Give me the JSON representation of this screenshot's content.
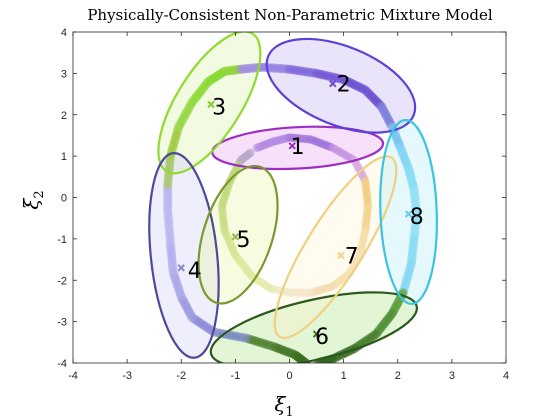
{
  "chart_data": {
    "type": "scatter",
    "title": "Physically-Consistent Non-Parametric Mixture Model",
    "xlabel": "ξ",
    "xlabel_sub": "1",
    "ylabel": "ξ",
    "ylabel_sub": "2",
    "xlim": [
      -4,
      4
    ],
    "ylim": [
      -4,
      4
    ],
    "xticks": [
      -4,
      -3,
      -2,
      -1,
      0,
      1,
      2,
      3,
      4
    ],
    "yticks": [
      -4,
      -3,
      -2,
      -1,
      0,
      1,
      2,
      3,
      4
    ],
    "grid": false,
    "box": true,
    "trajectory": {
      "points": [
        [
          0.3,
          -4.0
        ],
        [
          0.1,
          -3.8
        ],
        [
          -0.3,
          -3.6
        ],
        [
          -0.8,
          -3.4
        ],
        [
          -1.4,
          -3.25
        ],
        [
          -1.8,
          -2.9
        ],
        [
          -2.0,
          -2.4
        ],
        [
          -2.15,
          -1.8
        ],
        [
          -2.2,
          -1.1
        ],
        [
          -2.25,
          -0.3
        ],
        [
          -2.25,
          0.3
        ],
        [
          -2.2,
          1.0
        ],
        [
          -2.05,
          1.7
        ],
        [
          -1.8,
          2.3
        ],
        [
          -1.5,
          2.8
        ],
        [
          -1.2,
          3.05
        ],
        [
          -0.9,
          3.1
        ],
        [
          -0.5,
          3.15
        ],
        [
          0.0,
          3.1
        ],
        [
          0.5,
          3.0
        ],
        [
          1.0,
          2.85
        ],
        [
          1.4,
          2.6
        ],
        [
          1.7,
          2.2
        ],
        [
          1.9,
          1.7
        ],
        [
          2.05,
          1.2
        ],
        [
          2.2,
          0.7
        ],
        [
          2.3,
          0.2
        ],
        [
          2.35,
          -0.4
        ],
        [
          2.3,
          -1.0
        ],
        [
          2.25,
          -1.6
        ],
        [
          2.1,
          -2.3
        ],
        [
          1.9,
          -2.8
        ],
        [
          1.6,
          -3.3
        ],
        [
          1.2,
          -3.65
        ],
        [
          0.8,
          -3.9
        ],
        [
          0.5,
          -4.0
        ]
      ],
      "colors": [
        "#3a6b1f",
        "#3f7322",
        "#4a7e2a",
        "#6f7fc0",
        "#8a86d6",
        "#9d99e2",
        "#a8a4e8",
        "#b0aced",
        "#b5b2ef",
        "#b8b5f0",
        "#a6c46a",
        "#9dc83a",
        "#8fd63a",
        "#88d830",
        "#86d82e",
        "#8fd63a",
        "#a08ae0",
        "#8f7de0",
        "#7b63db",
        "#6f4fd6",
        "#6a4cd0",
        "#6a4cd0",
        "#7a7ed8",
        "#78c5ef",
        "#7fd6f2",
        "#86dcf3",
        "#8fe0f5",
        "#8fe0f5",
        "#86dcf3",
        "#7fd6f2",
        "#5a9c3a",
        "#4a8a2e",
        "#3f7a26",
        "#356b20",
        "#2f621c",
        "#2c5d1a"
      ]
    },
    "inner_trajectory": {
      "points": [
        [
          -0.6,
          1.2
        ],
        [
          -0.3,
          1.35
        ],
        [
          0.0,
          1.45
        ],
        [
          0.4,
          1.4
        ],
        [
          0.8,
          1.2
        ],
        [
          1.2,
          0.9
        ],
        [
          1.4,
          0.4
        ],
        [
          1.45,
          -0.2
        ],
        [
          1.4,
          -0.8
        ],
        [
          1.3,
          -1.4
        ],
        [
          1.1,
          -1.85
        ],
        [
          0.8,
          -2.15
        ],
        [
          0.4,
          -2.3
        ],
        [
          0.0,
          -2.3
        ],
        [
          -0.35,
          -2.2
        ],
        [
          -0.7,
          -1.9
        ],
        [
          -1.0,
          -1.4
        ],
        [
          -1.2,
          -0.8
        ],
        [
          -1.25,
          -0.2
        ],
        [
          -1.1,
          0.4
        ],
        [
          -0.9,
          0.9
        ],
        [
          -0.7,
          1.1
        ]
      ],
      "colors": [
        "#b78be0",
        "#b48ae3",
        "#a277da",
        "#9a6fd8",
        "#c48fe0",
        "#d9a5e0",
        "#f1cc7a",
        "#f0d48a",
        "#f3dca4",
        "#f6e2b4",
        "#f5e0b0",
        "#f3dbb0",
        "#f6e5c8",
        "#ecebc4",
        "#e3ebaa",
        "#dbe89a",
        "#d1e38a",
        "#c8dd80",
        "#bfd778",
        "#b9d670",
        "#b8a8c8",
        "#b391d8"
      ]
    },
    "components": [
      {
        "label": "1",
        "center": [
          0.15,
          1.2
        ],
        "rx": 1.58,
        "ry": 0.5,
        "angle_deg": 3,
        "stroke": "#9b2fc2",
        "fill": "#e8a9f0",
        "fill_opacity": 0.35
      },
      {
        "label": "2",
        "center": [
          0.95,
          2.7
        ],
        "rx": 1.45,
        "ry": 0.95,
        "angle_deg": -22,
        "stroke": "#5b41d8",
        "fill": "#b8a6f0",
        "fill_opacity": 0.3
      },
      {
        "label": "3",
        "center": [
          -1.48,
          2.3
        ],
        "rx": 1.5,
        "ry": 0.78,
        "angle_deg": 58,
        "stroke": "#8edc2e",
        "fill": "#d6f0a0",
        "fill_opacity": 0.3
      },
      {
        "label": "4",
        "center": [
          -1.95,
          -1.4
        ],
        "rx": 1.9,
        "ry": 0.8,
        "angle_deg": 96,
        "stroke": "#4d4a9a",
        "fill": "#c8c8f4",
        "fill_opacity": 0.3
      },
      {
        "label": "5",
        "center": [
          -0.95,
          -0.9
        ],
        "rx": 1.32,
        "ry": 0.83,
        "angle_deg": 72,
        "stroke": "#7a9a30",
        "fill": "#e8f4a6",
        "fill_opacity": 0.35
      },
      {
        "label": "6",
        "center": [
          0.45,
          -3.2
        ],
        "rx": 1.95,
        "ry": 0.72,
        "angle_deg": 13,
        "stroke": "#2c5a1e",
        "fill": "#a0dd70",
        "fill_opacity": 0.3
      },
      {
        "label": "7",
        "center": [
          0.85,
          -1.2
        ],
        "rx": 1.95,
        "ry": 0.68,
        "angle_deg": 58,
        "stroke": "#f0d080",
        "fill": "#fff2c8",
        "fill_opacity": 0.3
      },
      {
        "label": "8",
        "center": [
          2.2,
          -0.35
        ],
        "rx": 1.7,
        "ry": 0.68,
        "angle_deg": 92,
        "stroke": "#3ac4e0",
        "fill": "#a8ecf8",
        "fill_opacity": 0.3
      }
    ],
    "center_markers": [
      {
        "pos": [
          0.05,
          1.25
        ],
        "color": "#9b2fc2"
      },
      {
        "pos": [
          0.8,
          2.75
        ],
        "color": "#6a4cd0"
      },
      {
        "pos": [
          -1.45,
          2.25
        ],
        "color": "#88c830"
      },
      {
        "pos": [
          -2.0,
          -1.7
        ],
        "color": "#8a86d6"
      },
      {
        "pos": [
          -1.0,
          -0.95
        ],
        "color": "#9ab04a"
      },
      {
        "pos": [
          0.5,
          -3.3
        ],
        "color": "#3f7322"
      },
      {
        "pos": [
          0.95,
          -1.4
        ],
        "color": "#f3d08a"
      },
      {
        "pos": [
          2.2,
          -0.4
        ],
        "color": "#5ad0ea"
      }
    ],
    "label_offsets_note": "",
    "label_positions": [
      [
        0.15,
        1.25
      ],
      [
        1.0,
        2.75
      ],
      [
        -1.3,
        2.2
      ],
      [
        -1.75,
        -1.75
      ],
      [
        -0.85,
        -1.0
      ],
      [
        0.6,
        -3.35
      ],
      [
        1.15,
        -1.4
      ],
      [
        2.35,
        -0.45
      ]
    ]
  }
}
